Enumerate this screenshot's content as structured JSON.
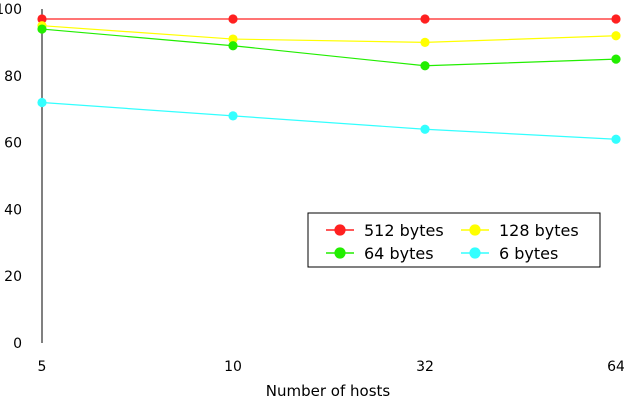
{
  "chart_data": {
    "type": "line",
    "title": "",
    "xlabel": "Number of hosts",
    "ylabel": "",
    "categories": [
      "5",
      "10",
      "32",
      "64"
    ],
    "ylim": [
      0,
      100
    ],
    "yticks": [
      0,
      20,
      40,
      60,
      80,
      100
    ],
    "grid": false,
    "legend": {
      "placement": "lower-right",
      "columns": 2
    },
    "series": [
      {
        "name": "512 bytes",
        "color": "#ff2020",
        "values": [
          97,
          97,
          97,
          97
        ]
      },
      {
        "name": "128 bytes",
        "color": "#ffff00",
        "values": [
          95,
          91,
          90,
          92
        ]
      },
      {
        "name": "64 bytes",
        "color": "#22ee00",
        "values": [
          94,
          89,
          83,
          85
        ]
      },
      {
        "name": "6 bytes",
        "color": "#33ffff",
        "values": [
          72,
          68,
          64,
          61
        ]
      }
    ]
  }
}
